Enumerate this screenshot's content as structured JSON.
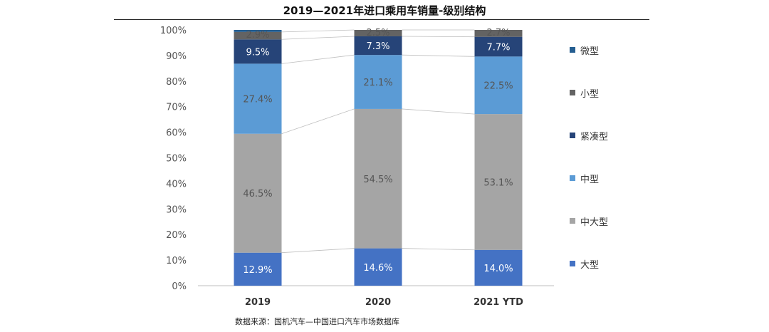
{
  "title": "2019—2021年进口乘用车销量-级别结构",
  "source_note": "数据来源：国机汽车—中国进口汽车市场数据库",
  "chart_data": {
    "type": "bar",
    "stacked": true,
    "percent_stacked": true,
    "title": "2019—2021年进口乘用车销量-级别结构",
    "categories": [
      "2019",
      "2020",
      "2021 YTD"
    ],
    "y_ticks": [
      "0%",
      "10%",
      "20%",
      "30%",
      "40%",
      "50%",
      "60%",
      "70%",
      "80%",
      "90%",
      "100%"
    ],
    "ylim": [
      0,
      100
    ],
    "grid": false,
    "legend_position": "right",
    "series": [
      {
        "name": "大型",
        "color": "#4472C4",
        "values": [
          12.9,
          14.6,
          14.0
        ],
        "labels": [
          "12.9%",
          "14.6%",
          "14.0%"
        ]
      },
      {
        "name": "中大型",
        "color": "#A5A5A5",
        "values": [
          46.5,
          54.5,
          53.1
        ],
        "labels": [
          "46.5%",
          "54.5%",
          "53.1%"
        ]
      },
      {
        "name": "中型",
        "color": "#5B9BD5",
        "values": [
          27.4,
          21.1,
          22.5
        ],
        "labels": [
          "27.4%",
          "21.1%",
          "22.5%"
        ]
      },
      {
        "name": "紧凑型",
        "color": "#264478",
        "values": [
          9.5,
          7.3,
          7.7
        ],
        "labels": [
          "9.5%",
          "7.3%",
          "7.7%"
        ]
      },
      {
        "name": "小型",
        "color": "#636363",
        "values": [
          2.9,
          2.5,
          2.7
        ],
        "labels": [
          "2.9%",
          "2.5%",
          "2.7%"
        ]
      },
      {
        "name": "微型",
        "color": "#255E91",
        "values": [
          0.8,
          0.0,
          0.0
        ],
        "labels": [
          "",
          "",
          ""
        ]
      }
    ],
    "legend_order": [
      "微型",
      "小型",
      "紧凑型",
      "中型",
      "中大型",
      "大型"
    ]
  }
}
